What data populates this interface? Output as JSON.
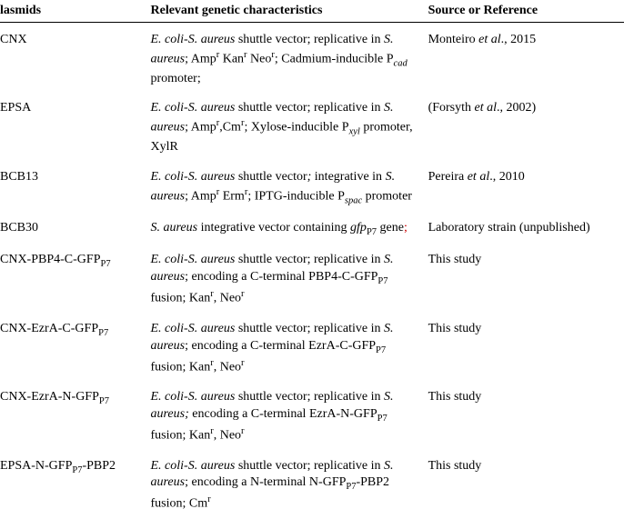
{
  "headers": {
    "plasmids": "lasmids",
    "characteristics": "Relevant genetic characteristics",
    "source": "Source or Reference"
  },
  "rows": [
    {
      "plasmid": "CNX",
      "char_html": "<span class='italic'>E. coli</span>-<span class='italic'>S. aureus</span> shuttle vector; replicative in <span class='italic'>S. aureus</span>; Amp<sup>r</sup> Kan<sup>r</sup> Neo<sup>r</sup>; Cadmium-inducible P<sub><span class='italic'>cad</span></sub> promoter;",
      "source_html": "Monteiro <span class='italic'>et al</span>., 2015"
    },
    {
      "plasmid": "EPSA",
      "char_html": "<span class='italic'>E. coli</span>-<span class='italic'>S. aureus</span> shuttle vector; replicative in <span class='italic'>S. aureus</span>; Amp<sup>r</sup>,Cm<sup>r</sup>; Xylose-inducible P<sub><span class='italic'>xyl</span></sub> promoter, XylR",
      "source_html": "(Forsyth <span class='italic'>et al</span>., 2002)"
    },
    {
      "plasmid": "BCB13",
      "char_html": "<span class='italic'>E. coli</span>-<span class='italic'>S. aureus</span> shuttle vector<span class='italic'>;</span> integrative in <span class='italic'>S. aureus</span>; Amp<sup>r</sup> Erm<sup>r</sup>; IPTG-inducible P<sub><span class='italic'>spac</span></sub> promoter",
      "source_html": "Pereira <span class='italic'>et al</span>., 2010"
    },
    {
      "plasmid": "BCB30",
      "char_html": "<span class='italic'>S. aureus</span> integrative vector containing <span class='italic'>gfp</span><sub>P7</sub> gene<span style='color:#c00'>;</span>",
      "source_html": "Laboratory strain (unpublished)"
    },
    {
      "plasmid_html": "CNX-PBP4-C-GFP<sub>P7</sub>",
      "char_html": "<span class='italic'>E. coli</span>-<span class='italic'>S. aureus</span> shuttle vector; replicative in <span class='italic'>S. aureus</span>; encoding a C-terminal PBP4-C-GFP<sub>P7</sub> fusion; Kan<sup>r</sup>, Neo<sup>r</sup>",
      "source_html": "This study"
    },
    {
      "plasmid_html": "CNX-EzrA-C-GFP<sub>P7</sub>",
      "char_html": "<span class='italic'>E. coli</span>-<span class='italic'>S. aureus</span> shuttle vector; replicative in <span class='italic'>S. aureus</span>; encoding a C-terminal EzrA-C-GFP<sub>P7</sub> fusion; Kan<sup>r</sup>, Neo<sup>r</sup>",
      "source_html": "This study"
    },
    {
      "plasmid_html": "CNX-EzrA-N-GFP<sub>P7</sub>",
      "char_html": "<span class='italic'>E. coli</span>-<span class='italic'>S. aureus</span> shuttle vector; replicative in <span class='italic'>S. aureus;</span> encoding a C-terminal EzrA-N-GFP<sub>P7</sub> fusion; Kan<sup>r</sup>, Neo<sup>r</sup>",
      "source_html": "This study"
    },
    {
      "plasmid_html": "EPSA-N-GFP<sub>P7</sub>-PBP2",
      "char_html": "<span class='italic'>E. coli</span>-<span class='italic'>S. aureus</span> shuttle vector; replicative in <span class='italic'>S. aureus</span>; encoding a N-terminal N-GFP<sub>P7</sub>-PBP2 fusion; Cm<sup>r</sup>",
      "source_html": "This study"
    }
  ]
}
